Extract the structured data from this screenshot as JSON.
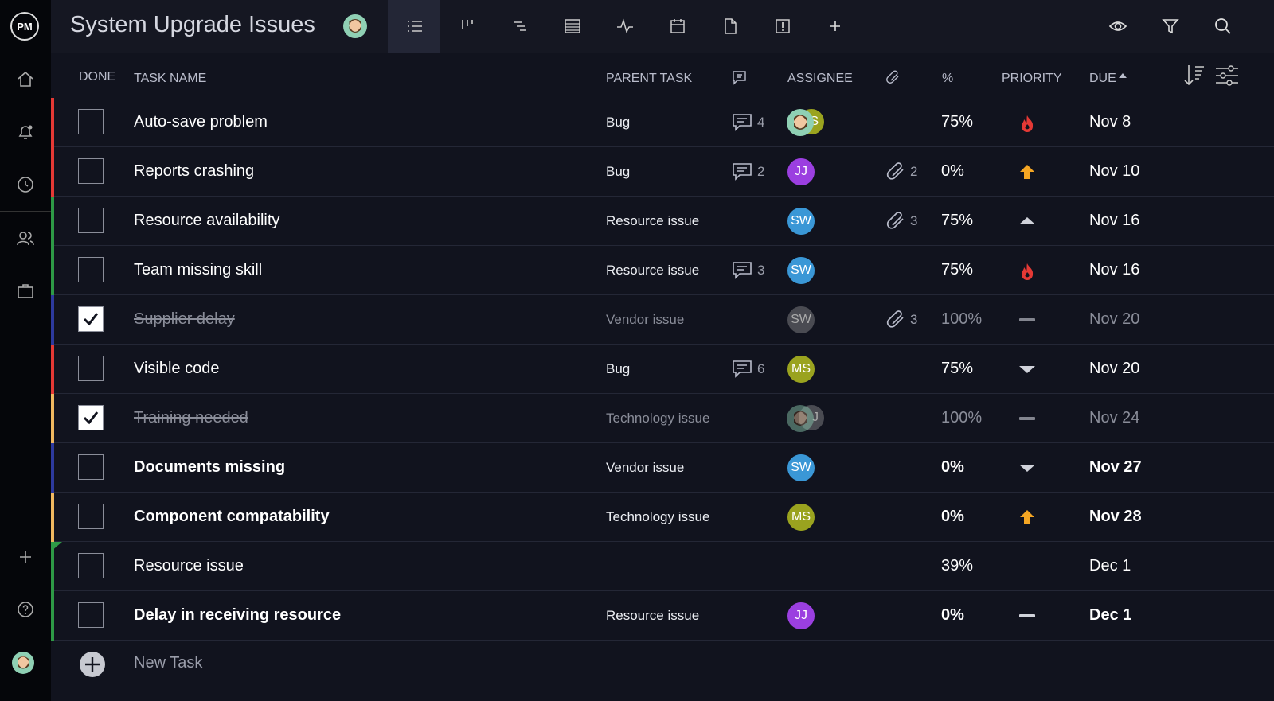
{
  "header": {
    "logo": "PM",
    "title": "System Upgrade Issues"
  },
  "table": {
    "columns": [
      "DONE",
      "TASK NAME",
      "PARENT TASK",
      "ASSIGNEE",
      "%",
      "PRIORITY",
      "DUE"
    ],
    "rows": [
      {
        "done": false,
        "name": "Auto-save problem",
        "parent": "Bug",
        "comments": 4,
        "assignees": [
          {
            "initials": "S",
            "color": "#9aa31f"
          }
        ],
        "percent": "75%",
        "due": "Nov 8",
        "color": "#e53935"
      },
      {
        "done": false,
        "name": "Reports crashing",
        "parent": "Bug",
        "comments": 2,
        "assignees": [
          {
            "initials": "JJ",
            "color": "#9b3fe0"
          }
        ],
        "attachments": 2,
        "percent": "0%",
        "due": "Nov 10",
        "color": "#e53935"
      },
      {
        "done": false,
        "name": "Resource availability",
        "parent": "Resource issue",
        "assignees": [
          {
            "initials": "SW",
            "color": "#3a97d6"
          }
        ],
        "attachments": 3,
        "percent": "75%",
        "due": "Nov 16",
        "color": "#2e9a46"
      },
      {
        "done": false,
        "name": "Team missing skill",
        "parent": "Resource issue",
        "comments": 3,
        "assignees": [
          {
            "initials": "SW",
            "color": "#3a97d6"
          }
        ],
        "percent": "75%",
        "due": "Nov 16",
        "color": "#2e9a46"
      },
      {
        "done": true,
        "name": "Supplier delay",
        "parent": "Vendor issue",
        "assignees": [
          {
            "initials": "SW",
            "color": "#4a4b52"
          }
        ],
        "attachments": 3,
        "percent": "100%",
        "due": "Nov 20",
        "color": "#2d3a9e"
      },
      {
        "done": false,
        "name": "Visible code",
        "parent": "Bug",
        "comments": 6,
        "assignees": [
          {
            "initials": "MS",
            "color": "#9aa31f"
          }
        ],
        "percent": "75%",
        "due": "Nov 20",
        "color": "#e53935"
      },
      {
        "done": true,
        "name": "Training needed",
        "parent": "Technology issue",
        "assignees": [
          {
            "initials": "J",
            "color": "#4a4b52"
          }
        ],
        "percent": "100%",
        "due": "Nov 24",
        "color": "#f0b860"
      },
      {
        "done": false,
        "bold": true,
        "name": "Documents missing",
        "parent": "Vendor issue",
        "assignees": [
          {
            "initials": "SW",
            "color": "#3a97d6"
          }
        ],
        "percent": "0%",
        "due": "Nov 27",
        "color": "#2d3a9e"
      },
      {
        "done": false,
        "bold": true,
        "name": "Component compatability",
        "parent": "Technology issue",
        "assignees": [
          {
            "initials": "MS",
            "color": "#9aa31f"
          }
        ],
        "percent": "0%",
        "due": "Nov 28",
        "color": "#f0b860"
      },
      {
        "done": false,
        "name": "Resource issue",
        "percent": "39%",
        "due": "Dec 1",
        "color": "#2e9a46"
      },
      {
        "done": false,
        "bold": true,
        "name": "Delay in receiving resource",
        "parent": "Resource issue",
        "assignees": [
          {
            "initials": "JJ",
            "color": "#9b3fe0"
          }
        ],
        "percent": "0%",
        "due": "Dec 1",
        "color": "#2e9a46"
      }
    ]
  },
  "new_task": "New Task"
}
